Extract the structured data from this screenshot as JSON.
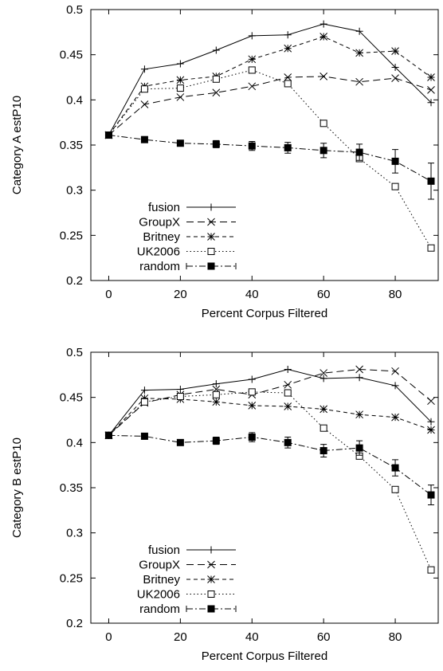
{
  "chart_data": [
    {
      "type": "line",
      "title": "",
      "xlabel": "Percent Corpus Filtered",
      "ylabel": "Category A estP10",
      "xlim": [
        -5,
        92
      ],
      "ylim": [
        0.2,
        0.5
      ],
      "xticks": [
        0,
        20,
        40,
        60,
        80
      ],
      "xtick_labels": [
        "0",
        "20",
        "40",
        "60",
        "80"
      ],
      "yticks": [
        0.2,
        0.25,
        0.3,
        0.35,
        0.4,
        0.45,
        0.5
      ],
      "ytick_labels": [
        "0.2",
        "0.25",
        "0.3",
        "0.35",
        "0.4",
        "0.45",
        "0.5"
      ],
      "grid": false,
      "legend": "bottom-left",
      "x": [
        0,
        10,
        20,
        30,
        40,
        50,
        60,
        70,
        80,
        90
      ],
      "series": [
        {
          "name": "fusion",
          "marker": "plus",
          "dash": "solid",
          "values": [
            0.361,
            0.434,
            0.44,
            0.455,
            0.471,
            0.472,
            0.484,
            0.476,
            0.436,
            0.397
          ]
        },
        {
          "name": "GroupX",
          "marker": "cross",
          "dash": "long",
          "values": [
            0.361,
            0.395,
            0.403,
            0.408,
            0.415,
            0.425,
            0.426,
            0.42,
            0.424,
            0.411
          ]
        },
        {
          "name": "Britney",
          "marker": "star",
          "dash": "short",
          "values": [
            0.361,
            0.415,
            0.422,
            0.426,
            0.445,
            0.457,
            0.47,
            0.452,
            0.454,
            0.425
          ]
        },
        {
          "name": "UK2006",
          "marker": "square-open",
          "dash": "dotted",
          "values": [
            0.361,
            0.412,
            0.413,
            0.423,
            0.433,
            0.418,
            0.374,
            0.335,
            0.304,
            0.236
          ]
        },
        {
          "name": "random",
          "marker": "square-filled",
          "dash": "dashdot",
          "values": [
            0.361,
            0.356,
            0.352,
            0.351,
            0.349,
            0.347,
            0.344,
            0.342,
            0.332,
            0.31
          ],
          "errors": [
            0,
            0.003,
            0.003,
            0.004,
            0.005,
            0.006,
            0.008,
            0.009,
            0.013,
            0.02
          ]
        }
      ]
    },
    {
      "type": "line",
      "title": "",
      "xlabel": "Percent Corpus Filtered",
      "ylabel": "Category B estP10",
      "xlim": [
        -5,
        92
      ],
      "ylim": [
        0.2,
        0.5
      ],
      "xticks": [
        0,
        20,
        40,
        60,
        80
      ],
      "xtick_labels": [
        "0",
        "20",
        "40",
        "60",
        "80"
      ],
      "yticks": [
        0.2,
        0.25,
        0.3,
        0.35,
        0.4,
        0.45,
        0.5
      ],
      "ytick_labels": [
        "0.2",
        "0.25",
        "0.3",
        "0.35",
        "0.4",
        "0.45",
        "0.5"
      ],
      "grid": false,
      "legend": "bottom-left",
      "x": [
        0,
        10,
        20,
        30,
        40,
        50,
        60,
        70,
        80,
        90
      ],
      "series": [
        {
          "name": "fusion",
          "marker": "plus",
          "dash": "solid",
          "values": [
            0.408,
            0.458,
            0.459,
            0.465,
            0.47,
            0.481,
            0.471,
            0.472,
            0.463,
            0.423
          ]
        },
        {
          "name": "GroupX",
          "marker": "cross",
          "dash": "long",
          "values": [
            0.408,
            0.444,
            0.453,
            0.459,
            0.453,
            0.464,
            0.477,
            0.481,
            0.479,
            0.446
          ]
        },
        {
          "name": "Britney",
          "marker": "star",
          "dash": "short",
          "values": [
            0.408,
            0.449,
            0.448,
            0.445,
            0.441,
            0.44,
            0.437,
            0.431,
            0.428,
            0.414
          ]
        },
        {
          "name": "UK2006",
          "marker": "square-open",
          "dash": "dotted",
          "values": [
            0.408,
            0.445,
            0.451,
            0.453,
            0.456,
            0.455,
            0.416,
            0.385,
            0.348,
            0.259
          ]
        },
        {
          "name": "random",
          "marker": "square-filled",
          "dash": "dashdot",
          "values": [
            0.408,
            0.407,
            0.4,
            0.402,
            0.406,
            0.4,
            0.391,
            0.394,
            0.372,
            0.342
          ],
          "errors": [
            0,
            0.003,
            0.003,
            0.004,
            0.005,
            0.006,
            0.007,
            0.008,
            0.009,
            0.011
          ]
        }
      ]
    }
  ]
}
